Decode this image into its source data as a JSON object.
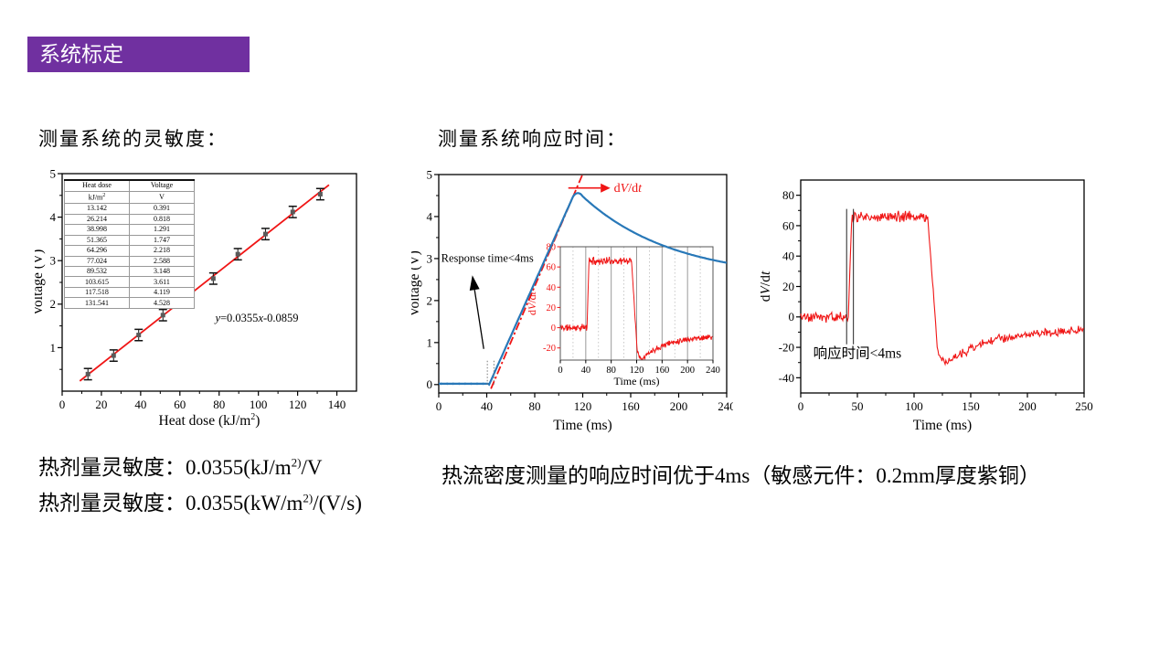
{
  "slide": {
    "title": "系统标定",
    "title_bg": "#7030A0",
    "title_text_color": "#ffffff",
    "background": "#ffffff"
  },
  "sections": {
    "sensitivity_label": "测量系统的灵敏度：",
    "response_label": "测量系统响应时间："
  },
  "footer": {
    "line1": {
      "label": "热剂量灵敏度：",
      "value": "0.0355(kJ/m",
      "sup": "2)",
      "post": "/V"
    },
    "line2": {
      "label": "热剂量灵敏度：",
      "value": "0.0355(kW/m",
      "sup": "2)",
      "post": "/(V/s)"
    },
    "response_note": "热流密度测量的响应时间优于4ms（敏感元件：0.2mm厚度紫铜）"
  },
  "chart_data": [
    {
      "id": "calibration",
      "type": "scatter",
      "xlabel": "Heat dose (kJ/m2)",
      "xlabel_parts": [
        "Heat dose (kJ/m",
        "2",
        ")"
      ],
      "ylabel": "Voltage (V)",
      "xlim": [
        0,
        150
      ],
      "ylim": [
        0,
        5
      ],
      "xticks": [
        0,
        20,
        40,
        60,
        80,
        100,
        120,
        140
      ],
      "yticks": [
        1,
        2,
        3,
        4,
        5
      ],
      "x_minor_step": 10,
      "y_minor_step": 0.5,
      "fit_label": "y=0.0355x-0.0859",
      "fit_slope": 0.0355,
      "fit_intercept": -0.0859,
      "fit_color": "#f01515",
      "marker_color": "#5a5a5a",
      "yerr": 0.13,
      "points_x": [
        13.142,
        26.214,
        38.998,
        51.365,
        64.296,
        77.024,
        89.532,
        103.615,
        117.518,
        131.541
      ],
      "points_y": [
        0.391,
        0.818,
        1.291,
        1.747,
        2.218,
        2.588,
        3.148,
        3.611,
        4.119,
        4.528
      ],
      "table": {
        "col1_header": "Heat dose",
        "col2_header": "Voltage",
        "col1_unit_base": "kJ/m",
        "col1_unit_sup": "2",
        "col2_unit": "V",
        "rows": [
          [
            "13.142",
            "0.391"
          ],
          [
            "26.214",
            "0.818"
          ],
          [
            "38.998",
            "1.291"
          ],
          [
            "51.365",
            "1.747"
          ],
          [
            "64.296",
            "2.218"
          ],
          [
            "77.024",
            "2.588"
          ],
          [
            "89.532",
            "3.148"
          ],
          [
            "103.615",
            "3.611"
          ],
          [
            "117.518",
            "4.119"
          ],
          [
            "131.541",
            "4.528"
          ]
        ]
      }
    },
    {
      "id": "response",
      "type": "line",
      "xlabel": "Time (ms)",
      "ylabel": "Voltage (V)",
      "xlim": [
        0,
        240
      ],
      "ylim": [
        -0.2,
        5
      ],
      "xticks": [
        0,
        40,
        80,
        120,
        160,
        200,
        240
      ],
      "yticks": [
        0,
        1,
        2,
        3,
        4,
        5
      ],
      "x_minor_step": 20,
      "y_minor_step": 0.5,
      "signal_color": "#2878b8",
      "deriv_color": "#f01515",
      "signal": {
        "flat_level": 0.02,
        "rise_start": 42,
        "peak_t": 116,
        "peak_v": 4.56,
        "end_t": 240,
        "end_v": 2.9,
        "decay_base": 2.5,
        "decay_tau": 75
      },
      "fit_line": {
        "t0": 43.5,
        "v0": -0.1,
        "t1": 119.5,
        "v1": 4.98
      },
      "response_label": "Response time<4ms",
      "dvdt_label": "dV/dt",
      "marker_ts": [
        40.5,
        46
      ],
      "inset": {
        "xlabel": "Time (ms)",
        "ylabel": "dV/dt",
        "xlim": [
          0,
          240
        ],
        "ylim": [
          -32,
          80
        ],
        "xticks": [
          0,
          40,
          80,
          120,
          160,
          200,
          240
        ],
        "yticks": [
          -20,
          0,
          20,
          40,
          60,
          80
        ],
        "grid_solid": [
          40,
          80,
          120,
          160,
          200
        ],
        "grid_dotted": [
          20,
          60,
          100,
          140,
          180,
          220
        ],
        "wave": {
          "base": 0,
          "rise_at": 42,
          "high": 66,
          "drop_at": 112,
          "dip_min": -31,
          "recover_to": -8,
          "end": 240,
          "noise": 4.5
        }
      }
    },
    {
      "id": "dvdt",
      "type": "line",
      "xlabel": "Time (ms)",
      "ylabel": "dV/dt",
      "xlim": [
        0,
        250
      ],
      "ylim": [
        -50,
        90
      ],
      "xticks": [
        0,
        50,
        100,
        150,
        200,
        250
      ],
      "yticks": [
        -40,
        -20,
        0,
        20,
        40,
        60,
        80
      ],
      "x_minor_step": 25,
      "y_minor_step": 10,
      "color": "#f01515",
      "annotation": "响应时间<4ms",
      "marker_ts": [
        40.5,
        46.5
      ],
      "wave": {
        "base": 0,
        "rise_at": 42,
        "high": 66,
        "drop_at": 112,
        "dip_min": -31,
        "recover_to": -8,
        "end": 250,
        "noise": 4.5
      }
    }
  ]
}
